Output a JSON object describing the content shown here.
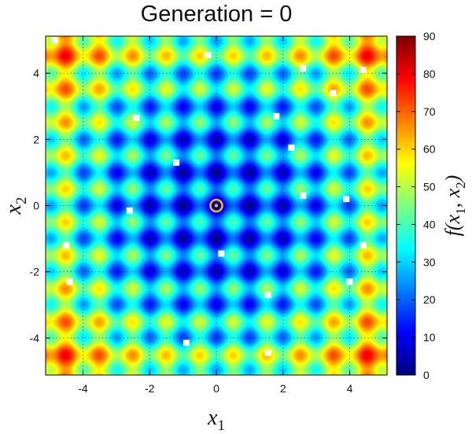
{
  "chart_data": {
    "type": "heatmap",
    "title": "Generation = 0",
    "function": "rastrigin",
    "xlabel": {
      "base": "x",
      "sub": "1"
    },
    "ylabel": {
      "base": "x",
      "sub": "2"
    },
    "colorbar_label": {
      "f": "f(",
      "x1": "x",
      "s1": "1",
      "comma": ", ",
      "x2": "x",
      "s2": "2",
      "close": ")"
    },
    "xlim": [
      -5.12,
      5.12
    ],
    "ylim": [
      -5.12,
      5.12
    ],
    "zlim": [
      0,
      90
    ],
    "x_ticks": [
      -4,
      -2,
      0,
      2,
      4
    ],
    "y_ticks": [
      -4,
      -2,
      0,
      2,
      4
    ],
    "colorbar_ticks": [
      0,
      10,
      20,
      30,
      40,
      50,
      60,
      70,
      80,
      90
    ],
    "grid": true,
    "colormap": [
      "#00007f",
      "#0000ff",
      "#007fff",
      "#00ffff",
      "#7fff7f",
      "#ffff00",
      "#ff7f00",
      "#ff0000",
      "#7f0000"
    ],
    "optimum": {
      "x": 0,
      "y": 0,
      "color": "#f0b81e"
    },
    "population_color": "#ffffff",
    "population": [
      {
        "x": -4.85,
        "y": 5.0
      },
      {
        "x": -0.25,
        "y": 4.55
      },
      {
        "x": 2.6,
        "y": 4.15
      },
      {
        "x": 4.4,
        "y": 4.1
      },
      {
        "x": 3.5,
        "y": 3.4
      },
      {
        "x": -2.4,
        "y": 2.65
      },
      {
        "x": 1.8,
        "y": 2.7
      },
      {
        "x": 2.25,
        "y": 1.75
      },
      {
        "x": -1.2,
        "y": 1.3
      },
      {
        "x": 2.6,
        "y": 0.3
      },
      {
        "x": 3.9,
        "y": 0.2
      },
      {
        "x": -2.6,
        "y": -0.15
      },
      {
        "x": -4.5,
        "y": -1.2
      },
      {
        "x": 4.4,
        "y": -1.2
      },
      {
        "x": 0.15,
        "y": -1.45
      },
      {
        "x": -4.4,
        "y": -2.3
      },
      {
        "x": 4.0,
        "y": -2.3
      },
      {
        "x": 1.55,
        "y": -2.7
      },
      {
        "x": -0.9,
        "y": -4.15
      },
      {
        "x": 1.55,
        "y": -4.45
      }
    ]
  }
}
